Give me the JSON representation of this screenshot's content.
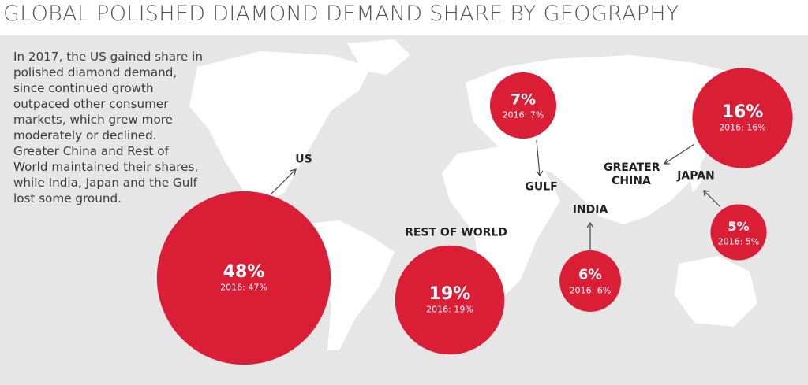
{
  "chart_data": {
    "type": "bubble",
    "title": "GLOBAL POLISHED DIAMOND DEMAND SHARE BY GEOGRAPHY",
    "description": "In 2017, the US gained share in polished diamond demand, since continued growth outpaced other consumer markets, which grew more moderately or declined. Greater China and Rest of World maintained their shares, while India, Japan and the Gulf lost some ground.",
    "categories": [
      "US",
      "GULF",
      "GREATER CHINA",
      "JAPAN",
      "INDIA",
      "REST OF WORLD"
    ],
    "values": [
      48,
      7,
      16,
      5,
      6,
      19
    ],
    "value_labels": [
      "48%",
      "7%",
      "16%",
      "5%",
      "6%",
      "19%"
    ],
    "previous_labels": [
      "2016: 47%",
      "2016: 7%",
      "2016: 16%",
      "2016: 5%",
      "2016: 6%",
      "2016: 19%"
    ],
    "color": "#d91e36"
  }
}
